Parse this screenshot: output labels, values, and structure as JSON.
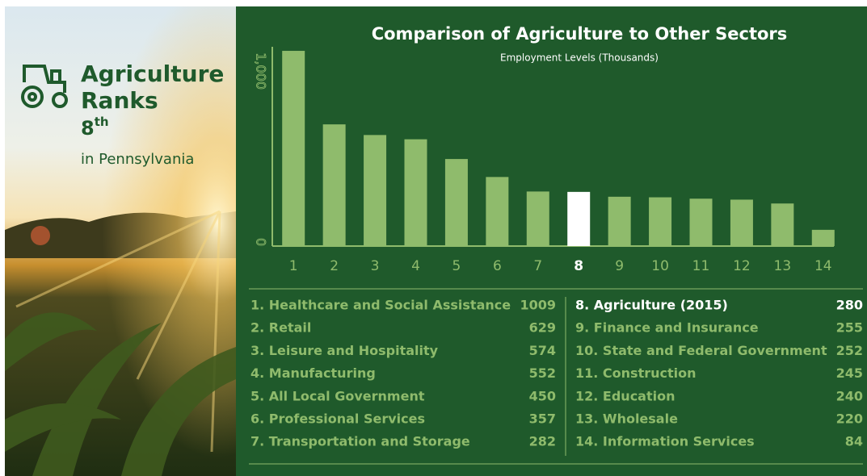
{
  "panel": {
    "title_lines": [
      "Agriculture",
      "Ranks"
    ],
    "rank": "8",
    "rank_suffix": "th",
    "place": "in Pennsylvania"
  },
  "chart_data": {
    "type": "bar",
    "title": "Comparison of Agriculture to Other Sectors",
    "subtitle": "Employment Levels (Thousands)",
    "categories": [
      "1",
      "2",
      "3",
      "4",
      "5",
      "6",
      "7",
      "8",
      "9",
      "10",
      "11",
      "12",
      "13",
      "14"
    ],
    "values": [
      1009,
      629,
      574,
      552,
      450,
      357,
      282,
      280,
      255,
      252,
      245,
      240,
      220,
      84
    ],
    "colors": [
      "#8fbb6c",
      "#8fbb6c",
      "#8fbb6c",
      "#8fbb6c",
      "#8fbb6c",
      "#8fbb6c",
      "#8fbb6c",
      "#ffffff",
      "#8fbb6c",
      "#8fbb6c",
      "#8fbb6c",
      "#8fbb6c",
      "#8fbb6c",
      "#8fbb6c"
    ],
    "ylim": [
      0,
      1030
    ],
    "yticks": [
      0,
      {
        "value": 1000,
        "label": "1,000"
      }
    ]
  },
  "table": {
    "rows": [
      "1. Healthcare and Social Assistance",
      "2. Retail",
      "3. Leisure and Hospitality",
      "4. Manufacturing",
      "5. All Local Government",
      "6. Professional Services",
      "7. Transportation and Storage",
      "8.  Agriculture (2015)",
      "9.  Finance and Insurance",
      "10. State and Federal Government",
      "11. Construction",
      "12. Education",
      "13. Wholesale",
      "14. Information Services"
    ]
  }
}
